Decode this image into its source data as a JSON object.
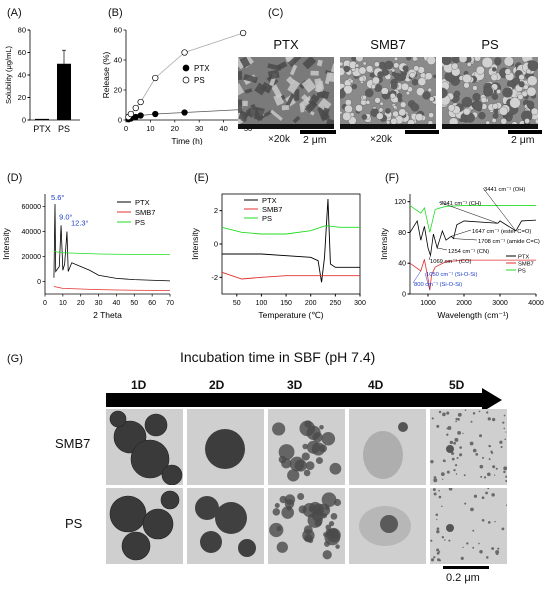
{
  "panels": {
    "A": "(A)",
    "B": "(B)",
    "C": "(C)",
    "D": "(D)",
    "E": "(E)",
    "F": "(F)",
    "G": "(G)"
  },
  "chart_data": [
    {
      "id": "A",
      "type": "bar",
      "categories": [
        "PTX",
        "PS"
      ],
      "values": [
        1,
        50
      ],
      "errors": [
        0,
        12
      ],
      "ylabel": "Solubility (μg/mL)",
      "ylim": [
        0,
        80
      ],
      "yticks": [
        "0",
        "20",
        "40",
        "60",
        "80"
      ],
      "colors": [
        "#000000",
        "#000000"
      ]
    },
    {
      "id": "B",
      "type": "line",
      "xlabel": "Time (h)",
      "ylabel": "Release (%)",
      "xlim": [
        0,
        50
      ],
      "ylim": [
        0,
        60
      ],
      "xticks": [
        "0",
        "10",
        "20",
        "30",
        "40",
        "50"
      ],
      "yticks": [
        "0",
        "20",
        "40",
        "60"
      ],
      "legend_position": "right",
      "series": [
        {
          "name": "PTX",
          "marker": "filled",
          "x": [
            1,
            2,
            4,
            6,
            12,
            24,
            48
          ],
          "y": [
            0.5,
            1,
            2,
            3,
            4,
            5,
            7
          ]
        },
        {
          "name": "PS",
          "marker": "open",
          "x": [
            1,
            2,
            4,
            6,
            12,
            24,
            48
          ],
          "y": [
            2,
            4,
            8,
            12,
            28,
            45,
            58
          ]
        }
      ]
    },
    {
      "id": "D",
      "type": "line",
      "xlabel": "2 Theta",
      "ylabel": "Intensity",
      "xlim": [
        0,
        70
      ],
      "ylim": [
        -10000,
        70000
      ],
      "xticks": [
        "0",
        "10",
        "20",
        "30",
        "40",
        "50",
        "60",
        "70"
      ],
      "yticks": [
        "0",
        "20000",
        "40000",
        "60000"
      ],
      "annotations": [
        "5.6°",
        "9.0°",
        "12.3°"
      ],
      "legend_position": "top-right",
      "series": [
        {
          "name": "PTX",
          "color": "#000000",
          "x": [
            5,
            5.6,
            6,
            8,
            9,
            10,
            11,
            12.3,
            13,
            15,
            20,
            25,
            30,
            40,
            50,
            60,
            70
          ],
          "y": [
            3000,
            62000,
            8000,
            12000,
            45000,
            9000,
            14000,
            40000,
            8000,
            15000,
            12000,
            9000,
            5000,
            2500,
            1500,
            1000,
            500
          ]
        },
        {
          "name": "SMB7",
          "color": "#e03030",
          "x": [
            5,
            10,
            20,
            30,
            40,
            50,
            60,
            70
          ],
          "y": [
            -4000,
            -5500,
            -6000,
            -6500,
            -6800,
            -7000,
            -7100,
            -7200
          ]
        },
        {
          "name": "PS",
          "color": "#22dd22",
          "x": [
            5,
            10,
            20,
            30,
            40,
            50,
            60,
            70
          ],
          "y": [
            24000,
            23000,
            22500,
            22000,
            21800,
            21600,
            21500,
            21500
          ]
        }
      ]
    },
    {
      "id": "E",
      "type": "line",
      "xlabel": "Temperature (℃)",
      "ylabel": "Intensity",
      "xlim": [
        20,
        300
      ],
      "ylim": [
        -3,
        3
      ],
      "xticks": [
        "50",
        "100",
        "150",
        "200",
        "250",
        "300"
      ],
      "yticks": [
        "-2",
        "0",
        "2"
      ],
      "legend_position": "top-left",
      "series": [
        {
          "name": "PTX",
          "color": "#000000",
          "x": [
            20,
            100,
            200,
            215,
            222,
            228,
            235,
            240,
            250,
            300
          ],
          "y": [
            -0.6,
            -0.6,
            -0.8,
            -1.0,
            -2.3,
            -0.8,
            2.7,
            -1.2,
            -1.4,
            -1.4
          ]
        },
        {
          "name": "SMB7",
          "color": "#e03030",
          "x": [
            20,
            60,
            100,
            150,
            200,
            250,
            300
          ],
          "y": [
            -1.7,
            -2.1,
            -2.0,
            -1.9,
            -1.9,
            -1.9,
            -1.9
          ]
        },
        {
          "name": "PS",
          "color": "#22dd22",
          "x": [
            20,
            60,
            100,
            150,
            200,
            230,
            260,
            300
          ],
          "y": [
            1.0,
            0.7,
            0.6,
            0.6,
            0.8,
            1.1,
            1.0,
            1.0
          ]
        }
      ]
    },
    {
      "id": "F",
      "type": "line",
      "xlabel": "Wavelength (cm⁻¹)",
      "ylabel": "Intensity",
      "xlim": [
        500,
        4000
      ],
      "ylim": [
        0,
        130
      ],
      "xticks": [
        "1000",
        "2000",
        "3000",
        "4000"
      ],
      "yticks": [
        "0",
        "40",
        "80",
        "120"
      ],
      "legend_position": "right",
      "annotations": [
        "3441 cm⁻¹ (OH)",
        "2941 cm⁻¹ (CH)",
        "1647 cm⁻¹ (ester C=O)",
        "1708 cm⁻¹ (amide C=C)",
        "1254 cm⁻¹ (CN)",
        "1069 cm⁻¹ (CO)",
        "1050 cm⁻¹ (Si-O-Si)",
        "800 cm⁻¹ (Si-O-Si)"
      ],
      "series": [
        {
          "name": "PTX",
          "color": "#000000",
          "x": [
            500,
            700,
            800,
            900,
            1000,
            1069,
            1150,
            1254,
            1400,
            1500,
            1647,
            1708,
            1800,
            2000,
            2941,
            3000,
            3441,
            3600,
            4000
          ],
          "y": [
            80,
            95,
            70,
            88,
            60,
            50,
            78,
            60,
            82,
            70,
            75,
            72,
            90,
            95,
            92,
            95,
            82,
            95,
            96
          ]
        },
        {
          "name": "SMB7",
          "color": "#e03030",
          "x": [
            500,
            800,
            900,
            1000,
            1050,
            1100,
            1200,
            1500,
            2000,
            3000,
            4000
          ],
          "y": [
            40,
            30,
            45,
            20,
            5,
            25,
            35,
            42,
            44,
            44,
            44
          ]
        },
        {
          "name": "PS",
          "color": "#22dd22",
          "x": [
            500,
            800,
            900,
            1050,
            1200,
            1500,
            2000,
            3000,
            4000
          ],
          "y": [
            115,
            105,
            112,
            80,
            110,
            114,
            115,
            115,
            115
          ]
        }
      ]
    }
  ],
  "sem": {
    "titles": [
      "PTX",
      "SMB7",
      "PS"
    ],
    "magnification": [
      "×20k",
      "×20k",
      ""
    ],
    "scale": [
      "2 μm",
      "2 μm"
    ]
  },
  "tem": {
    "title": "Incubation time in SBF (pH 7.4)",
    "days": [
      "1D",
      "2D",
      "3D",
      "4D",
      "5D"
    ],
    "rows": [
      "SMB7",
      "PS"
    ],
    "scale": "0.2 μm"
  }
}
